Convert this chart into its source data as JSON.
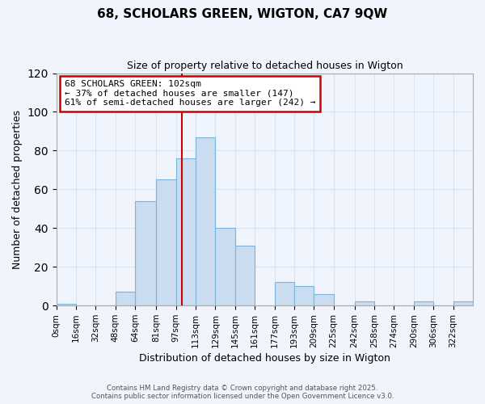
{
  "title": "68, SCHOLARS GREEN, WIGTON, CA7 9QW",
  "subtitle": "Size of property relative to detached houses in Wigton",
  "xlabel": "Distribution of detached houses by size in Wigton",
  "ylabel": "Number of detached properties",
  "bin_labels": [
    "0sqm",
    "16sqm",
    "32sqm",
    "48sqm",
    "64sqm",
    "81sqm",
    "97sqm",
    "113sqm",
    "129sqm",
    "145sqm",
    "161sqm",
    "177sqm",
    "193sqm",
    "209sqm",
    "225sqm",
    "242sqm",
    "258sqm",
    "274sqm",
    "290sqm",
    "306sqm",
    "322sqm"
  ],
  "bin_left_edges": [
    0,
    16,
    32,
    48,
    64,
    81,
    97,
    113,
    129,
    145,
    161,
    177,
    193,
    209,
    225,
    242,
    258,
    274,
    290,
    306,
    322
  ],
  "bin_widths": [
    16,
    16,
    16,
    16,
    17,
    16,
    16,
    16,
    16,
    16,
    16,
    16,
    16,
    16,
    17,
    16,
    16,
    16,
    16,
    16,
    16
  ],
  "bar_heights": [
    1,
    0,
    0,
    7,
    54,
    65,
    76,
    87,
    40,
    31,
    0,
    12,
    10,
    6,
    0,
    2,
    0,
    0,
    2,
    0,
    2
  ],
  "bar_color": "#c9dcf0",
  "bar_edge_color": "#7ab4d8",
  "grid_color": "#d8e4f0",
  "vline_x": 102,
  "vline_color": "#cc0000",
  "annotation_text_line1": "68 SCHOLARS GREEN: 102sqm",
  "annotation_text_line2": "← 37% of detached houses are smaller (147)",
  "annotation_text_line3": "61% of semi-detached houses are larger (242) →",
  "annotation_box_color": "#ffffff",
  "annotation_box_edge": "#cc0000",
  "ylim": [
    0,
    120
  ],
  "yticks": [
    0,
    20,
    40,
    60,
    80,
    100,
    120
  ],
  "xlim_max": 338,
  "footer_line1": "Contains HM Land Registry data © Crown copyright and database right 2025.",
  "footer_line2": "Contains public sector information licensed under the Open Government Licence v3.0.",
  "bg_color": "#f0f4fc"
}
